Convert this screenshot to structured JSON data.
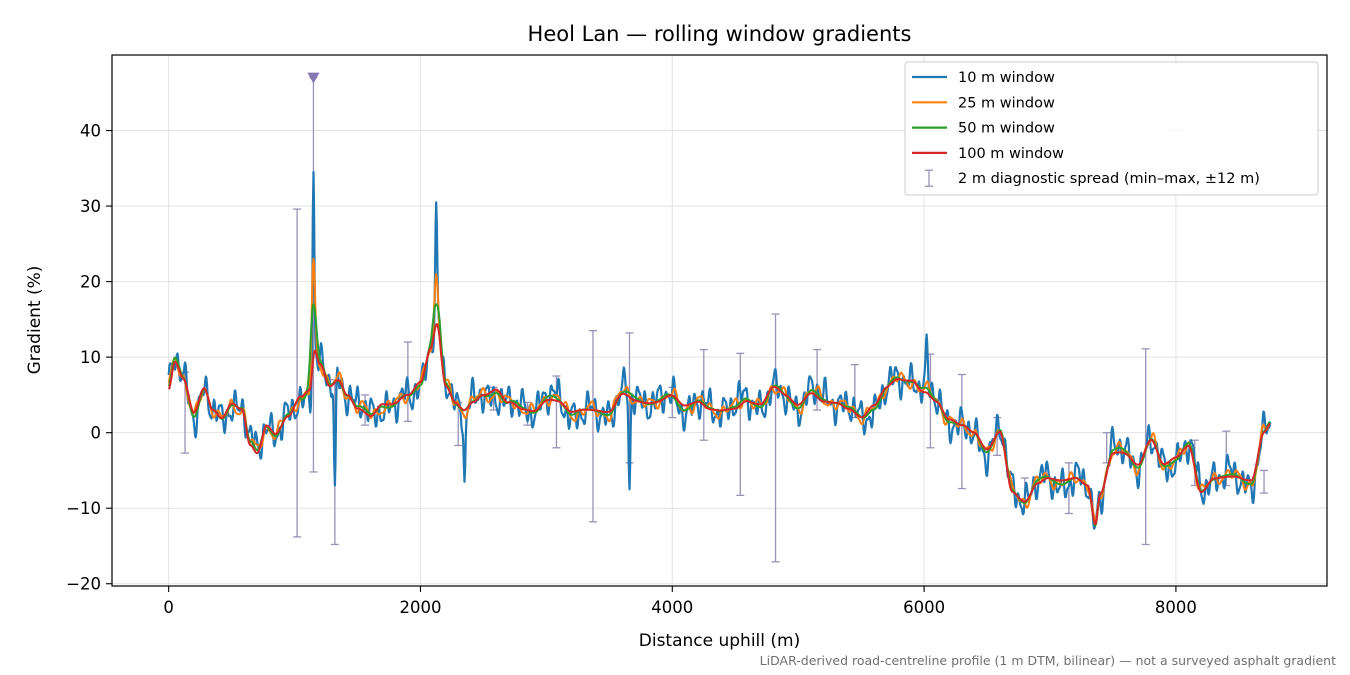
{
  "chart_data": {
    "type": "line",
    "title": "Heol Lan — rolling window gradients",
    "xlabel": "Distance uphill (m)",
    "ylabel": "Gradient (%)",
    "xlim": [
      -450,
      9200
    ],
    "ylim": [
      -20.3,
      50
    ],
    "x_ticks": [
      0,
      2000,
      4000,
      6000,
      8000
    ],
    "x_tick_labels": [
      "0",
      "2000",
      "4000",
      "6000",
      "8000"
    ],
    "y_ticks": [
      -20,
      -10,
      0,
      10,
      20,
      30,
      40
    ],
    "y_tick_labels": [
      "−20",
      "−10",
      "0",
      "10",
      "20",
      "30",
      "40"
    ],
    "grid": true,
    "legend_position": "top-right",
    "footnote": "LiDAR-derived road-centreline profile (1 m DTM, bilinear) — not a surveyed asphalt gradient",
    "profile_anchors": [
      [
        0,
        5.5
      ],
      [
        50,
        9
      ],
      [
        120,
        7
      ],
      [
        200,
        3
      ],
      [
        280,
        6
      ],
      [
        350,
        3
      ],
      [
        420,
        2
      ],
      [
        500,
        4
      ],
      [
        580,
        3
      ],
      [
        650,
        -2
      ],
      [
        700,
        -3
      ],
      [
        780,
        1
      ],
      [
        850,
        0
      ],
      [
        950,
        2
      ],
      [
        1050,
        5
      ],
      [
        1120,
        6
      ],
      [
        1160,
        11
      ],
      [
        1200,
        9
      ],
      [
        1280,
        6
      ],
      [
        1350,
        7
      ],
      [
        1420,
        5
      ],
      [
        1500,
        3
      ],
      [
        1600,
        2
      ],
      [
        1700,
        4
      ],
      [
        1800,
        4
      ],
      [
        1900,
        5
      ],
      [
        2000,
        7
      ],
      [
        2080,
        11
      ],
      [
        2130,
        14
      ],
      [
        2200,
        6
      ],
      [
        2280,
        4
      ],
      [
        2350,
        3
      ],
      [
        2420,
        4
      ],
      [
        2500,
        5
      ],
      [
        2600,
        6
      ],
      [
        2700,
        4
      ],
      [
        2800,
        3
      ],
      [
        2900,
        3
      ],
      [
        3000,
        4
      ],
      [
        3100,
        4
      ],
      [
        3200,
        3
      ],
      [
        3300,
        3
      ],
      [
        3400,
        3
      ],
      [
        3500,
        3
      ],
      [
        3600,
        5
      ],
      [
        3700,
        4
      ],
      [
        3800,
        4
      ],
      [
        3900,
        4
      ],
      [
        4000,
        5
      ],
      [
        4100,
        4
      ],
      [
        4200,
        4
      ],
      [
        4300,
        3
      ],
      [
        4400,
        3
      ],
      [
        4500,
        3
      ],
      [
        4600,
        4
      ],
      [
        4700,
        4
      ],
      [
        4800,
        6
      ],
      [
        4900,
        5
      ],
      [
        5000,
        4
      ],
      [
        5100,
        5
      ],
      [
        5200,
        4
      ],
      [
        5300,
        4
      ],
      [
        5400,
        3
      ],
      [
        5500,
        2
      ],
      [
        5600,
        4
      ],
      [
        5700,
        6
      ],
      [
        5800,
        7
      ],
      [
        5900,
        7
      ],
      [
        6000,
        5
      ],
      [
        6100,
        4
      ],
      [
        6200,
        2
      ],
      [
        6300,
        1
      ],
      [
        6400,
        0
      ],
      [
        6500,
        -2
      ],
      [
        6600,
        0
      ],
      [
        6700,
        -8
      ],
      [
        6800,
        -9
      ],
      [
        6900,
        -7
      ],
      [
        7000,
        -6
      ],
      [
        7100,
        -6
      ],
      [
        7200,
        -6
      ],
      [
        7300,
        -7
      ],
      [
        7360,
        -12
      ],
      [
        7400,
        -8
      ],
      [
        7500,
        -3
      ],
      [
        7600,
        -3
      ],
      [
        7700,
        -4
      ],
      [
        7800,
        -1
      ],
      [
        7900,
        -4
      ],
      [
        8000,
        -3
      ],
      [
        8100,
        -2
      ],
      [
        8200,
        -8
      ],
      [
        8300,
        -6
      ],
      [
        8400,
        -6
      ],
      [
        8500,
        -6
      ],
      [
        8600,
        -6
      ],
      [
        8700,
        0
      ],
      [
        8750,
        1
      ]
    ],
    "series": [
      {
        "name": "10 m window",
        "color": "#1f77b4",
        "noise": 2.8
      },
      {
        "name": "25 m window",
        "color": "#ff7f0e",
        "noise": 1.7
      },
      {
        "name": "50 m window",
        "color": "#2ca02c",
        "noise": 0.9
      },
      {
        "name": "100 m window",
        "color": "#d62728",
        "noise": 0.35
      }
    ],
    "spikes": [
      {
        "x": 1150,
        "series": {
          "10 m window": 34.5,
          "25 m window": 23,
          "50 m window": 17
        }
      },
      {
        "x": 2125,
        "series": {
          "10 m window": 30.5,
          "25 m window": 21,
          "50 m window": 17
        }
      },
      {
        "x": 3660,
        "series": {
          "10 m window": -7.5
        }
      },
      {
        "x": 2350,
        "series": {
          "10 m window": -6.5
        }
      },
      {
        "x": 1320,
        "series": {
          "10 m window": -7
        }
      },
      {
        "x": 6020,
        "series": {
          "10 m window": 13
        }
      }
    ],
    "diagnostic": {
      "name": "2 m diagnostic spread (min–max, ±12 m)",
      "color": "#9a92b8",
      "bars": [
        [
          130,
          8,
          -2.7
        ],
        [
          1020,
          29.6,
          -13.8
        ],
        [
          1150,
          47,
          -5.2
        ],
        [
          1320,
          7,
          -14.8
        ],
        [
          1560,
          5,
          1
        ],
        [
          1900,
          12,
          1.5
        ],
        [
          2300,
          4,
          -1.7
        ],
        [
          2580,
          6,
          3
        ],
        [
          2850,
          4,
          1
        ],
        [
          3080,
          7.5,
          -2
        ],
        [
          3370,
          13.5,
          -11.8
        ],
        [
          3660,
          13.2,
          -4
        ],
        [
          4000,
          6,
          2
        ],
        [
          4250,
          11,
          -1
        ],
        [
          4540,
          10.5,
          -8.3
        ],
        [
          4820,
          15.7,
          -17.1
        ],
        [
          5150,
          11,
          3
        ],
        [
          5450,
          9,
          2
        ],
        [
          6050,
          10.4,
          -2
        ],
        [
          6300,
          7.7,
          -7.4
        ],
        [
          6580,
          2,
          -3
        ],
        [
          6800,
          -6,
          -9
        ],
        [
          7150,
          -4,
          -10.7
        ],
        [
          7450,
          0,
          -4
        ],
        [
          7760,
          11.1,
          -14.8
        ],
        [
          8150,
          -1,
          -7
        ],
        [
          8400,
          0.2,
          -7
        ],
        [
          8700,
          -5,
          -8
        ]
      ]
    },
    "marker": {
      "x": 1150,
      "y": 47,
      "color": "#8677b0"
    }
  }
}
